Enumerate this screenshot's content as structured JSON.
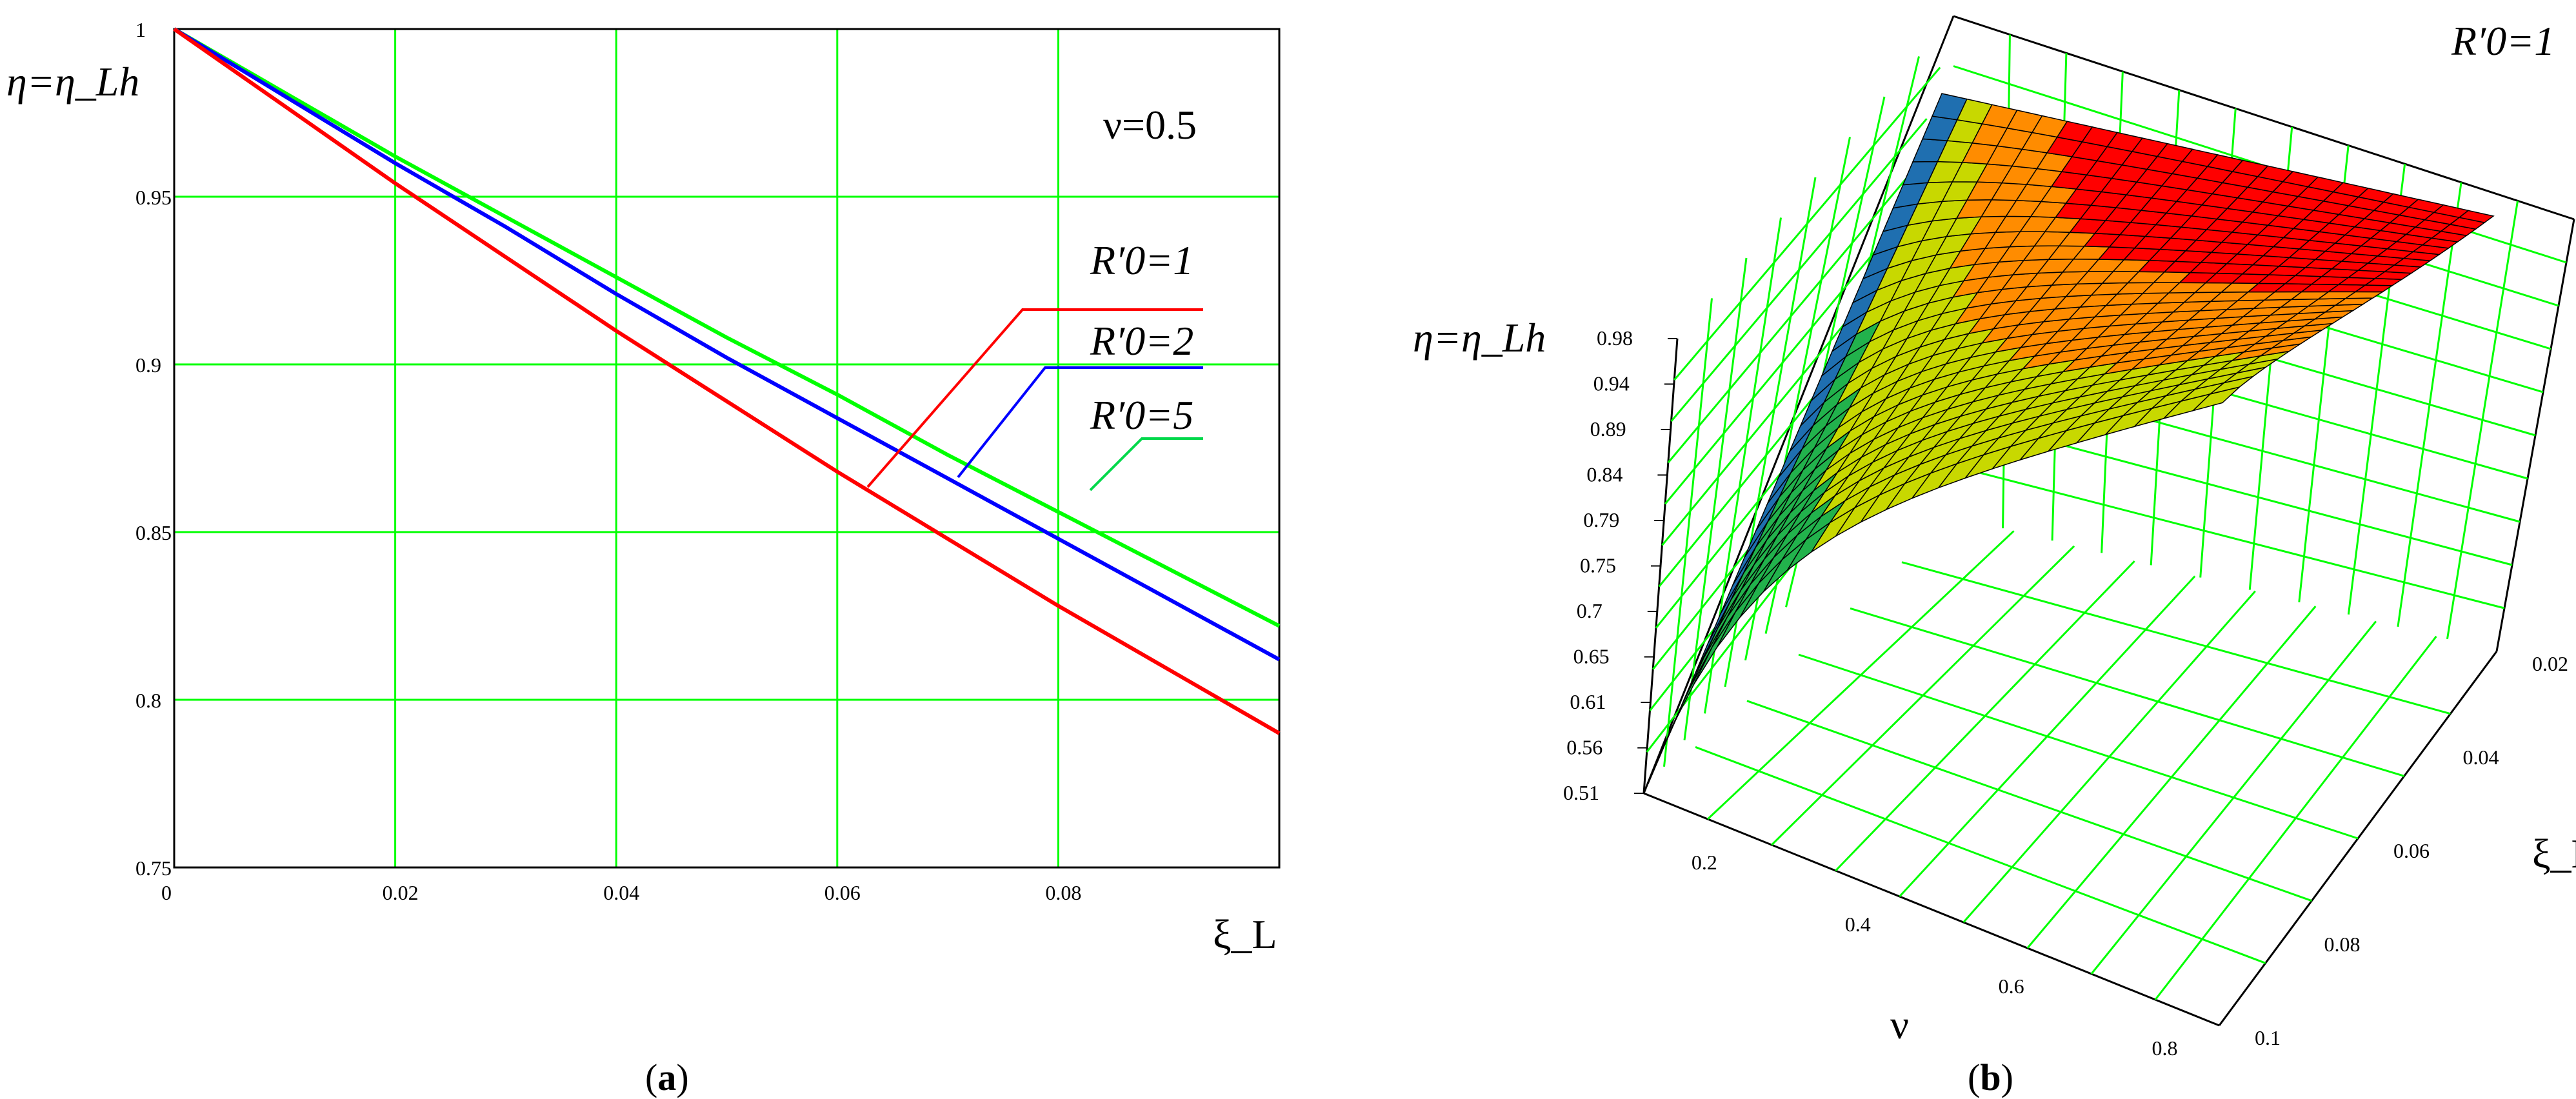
{
  "chart_data": [
    {
      "panel": "(a)",
      "type": "line",
      "title": "",
      "ylabel": "η=η_Lh",
      "xlabel": "ξ_L",
      "annotation": "ν=0.5",
      "xlim": [
        0,
        0.1
      ],
      "ylim": [
        0.75,
        1
      ],
      "x_ticks": [
        "0",
        "0.02",
        "0.04",
        "0.06",
        "0.08"
      ],
      "y_ticks": [
        "0.75",
        "0.8",
        "0.85",
        "0.9",
        "0.95",
        "1"
      ],
      "grid": true,
      "x": [
        0,
        0.01,
        0.02,
        0.03,
        0.04,
        0.05,
        0.06,
        0.07,
        0.08,
        0.09,
        0.1
      ],
      "series": [
        {
          "name": "R′0=1",
          "color": "#ff0000",
          "values": [
            1.0,
            0.977,
            0.954,
            0.932,
            0.91,
            0.889,
            0.868,
            0.848,
            0.828,
            0.809,
            0.79
          ]
        },
        {
          "name": "R′0=2",
          "color": "#0000ff",
          "values": [
            1.0,
            0.98,
            0.96,
            0.941,
            0.921,
            0.902,
            0.884,
            0.866,
            0.848,
            0.83,
            0.812
          ]
        },
        {
          "name": "R′0=5",
          "color": "#00ff00",
          "values": [
            1.0,
            0.981,
            0.962,
            0.944,
            0.926,
            0.908,
            0.891,
            0.873,
            0.856,
            0.839,
            0.822
          ]
        }
      ]
    },
    {
      "panel": "(b)",
      "type": "surface",
      "title": "R′0=1",
      "zlabel": "η=η_Lh",
      "xlabel": "ν",
      "ylabel": "ξ_L",
      "z_ticks": [
        "0.51",
        "0.56",
        "0.61",
        "0.65",
        "0.7",
        "0.75",
        "0.79",
        "0.84",
        "0.89",
        "0.94",
        "0.98"
      ],
      "x_ticks": [
        "0.2",
        "0.4",
        "0.6",
        "0.8"
      ],
      "y_ticks": [
        "0.02",
        "0.04",
        "0.06",
        "0.08",
        "0.1"
      ],
      "zlim": [
        0.51,
        0.98
      ],
      "colors": [
        "#1f6fb0",
        "#22b24c",
        "#c8d800",
        "#ff8c00",
        "#ff0000"
      ],
      "grid": true
    }
  ],
  "captions": [
    "a",
    "b"
  ],
  "grid_color": "#00ff00"
}
